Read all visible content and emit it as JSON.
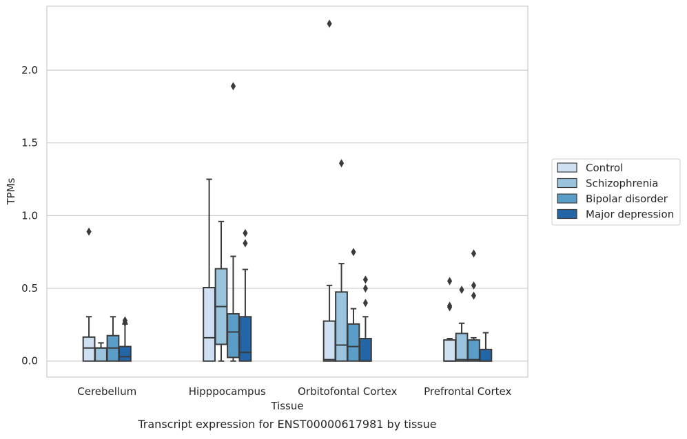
{
  "caption": "Transcript expression for ENST00000617981 by tissue",
  "chart_data": {
    "type": "box",
    "xlabel": "Tissue",
    "ylabel": "TPMs",
    "ylim": [
      -0.11,
      2.44
    ],
    "yticks": [
      0.0,
      0.5,
      1.0,
      1.5,
      2.0
    ],
    "ytick_labels": [
      "0.0",
      "0.5",
      "1.0",
      "1.5",
      "2.0"
    ],
    "grid": "horizontal",
    "legend_position": "outside-right",
    "categories": [
      "Cerebellum",
      "Hipppocampus",
      "Orbitofontal Cortex",
      "Prefrontal Cortex"
    ],
    "series": [
      {
        "name": "Control",
        "color": "#d0e0f3",
        "boxes": [
          {
            "min": 0.0,
            "q1": 0.0,
            "median": 0.09,
            "q3": 0.165,
            "max": 0.305,
            "outliers": [
              0.89
            ]
          },
          {
            "min": 0.0,
            "q1": 0.0,
            "median": 0.16,
            "q3": 0.505,
            "max": 1.25,
            "outliers": []
          },
          {
            "min": 0.0,
            "q1": 0.0,
            "median": 0.01,
            "q3": 0.275,
            "max": 0.52,
            "outliers": [
              2.32
            ]
          },
          {
            "min": 0.0,
            "q1": 0.0,
            "median": 0.0,
            "q3": 0.145,
            "max": 0.155,
            "outliers": [
              0.37,
              0.38,
              0.55
            ]
          }
        ]
      },
      {
        "name": "Schizophrenia",
        "color": "#9ac3de",
        "boxes": [
          {
            "min": 0.0,
            "q1": 0.0,
            "median": 0.09,
            "q3": 0.09,
            "max": 0.125,
            "outliers": []
          },
          {
            "min": 0.0,
            "q1": 0.115,
            "median": 0.375,
            "q3": 0.635,
            "max": 0.96,
            "outliers": []
          },
          {
            "min": 0.0,
            "q1": 0.0,
            "median": 0.11,
            "q3": 0.475,
            "max": 0.67,
            "outliers": [
              1.36
            ]
          },
          {
            "min": 0.0,
            "q1": 0.0,
            "median": 0.01,
            "q3": 0.19,
            "max": 0.26,
            "outliers": [
              0.49
            ]
          }
        ]
      },
      {
        "name": "Bipolar disorder",
        "color": "#5b9dc9",
        "boxes": [
          {
            "min": 0.0,
            "q1": 0.0,
            "median": 0.09,
            "q3": 0.175,
            "max": 0.305,
            "outliers": []
          },
          {
            "min": 0.0,
            "q1": 0.025,
            "median": 0.2,
            "q3": 0.325,
            "max": 0.72,
            "outliers": [
              1.89
            ]
          },
          {
            "min": 0.0,
            "q1": 0.0,
            "median": 0.1,
            "q3": 0.255,
            "max": 0.36,
            "outliers": [
              0.75
            ]
          },
          {
            "min": 0.0,
            "q1": 0.0,
            "median": 0.01,
            "q3": 0.145,
            "max": 0.16,
            "outliers": [
              0.45,
              0.52,
              0.74
            ]
          }
        ]
      },
      {
        "name": "Major depression",
        "color": "#2366a8",
        "boxes": [
          {
            "min": 0.0,
            "q1": 0.0,
            "median": 0.03,
            "q3": 0.1,
            "max": 0.255,
            "outliers": [
              0.265,
              0.28
            ]
          },
          {
            "min": 0.0,
            "q1": 0.0,
            "median": 0.06,
            "q3": 0.305,
            "max": 0.63,
            "outliers": [
              0.81,
              0.88
            ]
          },
          {
            "min": 0.0,
            "q1": 0.0,
            "median": 0.0,
            "q3": 0.155,
            "max": 0.305,
            "outliers": [
              0.4,
              0.5,
              0.56
            ]
          },
          {
            "min": 0.0,
            "q1": 0.0,
            "median": 0.0,
            "q3": 0.08,
            "max": 0.195,
            "outliers": []
          }
        ]
      }
    ]
  }
}
